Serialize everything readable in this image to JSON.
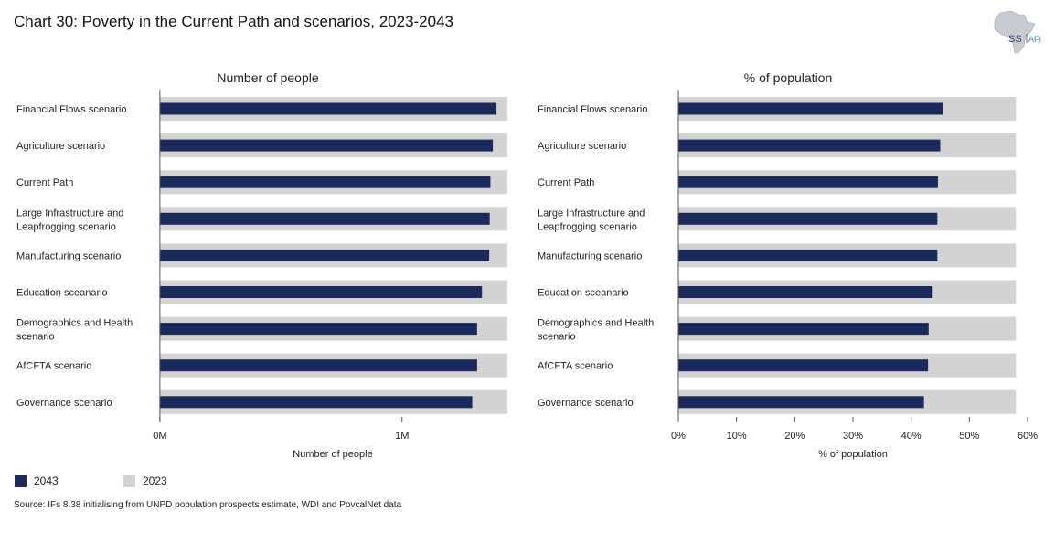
{
  "title": "Chart 30: Poverty in the Current Path and scenarios, 2023-2043",
  "logo": {
    "text_main": "ISS",
    "text_sub": "AFI"
  },
  "colors": {
    "bar_2043": "#1b2a5a",
    "bar_2023": "#d3d3d4",
    "axis": "#555555"
  },
  "legend": [
    {
      "label": "2043",
      "color": "#1b2a5a"
    },
    {
      "label": "2023",
      "color": "#d3d3d4"
    }
  ],
  "source": "Source: IFs 8.38 initialising from UNPD population prospects estimate, WDI and PovcalNet data",
  "chart_data": [
    {
      "type": "bar",
      "orientation": "horizontal",
      "title": "Number of people",
      "xlabel": "Number of people",
      "xlim": [
        -0.007,
        1.435
      ],
      "ticks": [
        {
          "value": 0,
          "label": "0M"
        },
        {
          "value": 1,
          "label": "1M"
        }
      ],
      "categories": [
        [
          "Financial Flows scenario"
        ],
        [
          "Agriculture scenario"
        ],
        [
          "Current Path"
        ],
        [
          "Large Infrastructure and",
          "Leapfrogging scenario"
        ],
        [
          "Manufacturing scenario"
        ],
        [
          "Education sceanario"
        ],
        [
          "Demographics and Health",
          "scenario"
        ],
        [
          "AfCFTA scenario"
        ],
        [
          "Governance scenario"
        ]
      ],
      "series": [
        {
          "name": "2023",
          "values": [
            1.435,
            1.435,
            1.435,
            1.435,
            1.435,
            1.435,
            1.435,
            1.435,
            1.435
          ]
        },
        {
          "name": "2043",
          "values": [
            1.39,
            1.375,
            1.365,
            1.362,
            1.36,
            1.33,
            1.31,
            1.31,
            1.29
          ]
        }
      ]
    },
    {
      "type": "bar",
      "orientation": "horizontal",
      "title": "% of population",
      "xlabel": "% of population",
      "xlim": [
        0,
        60
      ],
      "ticks": [
        {
          "value": 0,
          "label": "0%"
        },
        {
          "value": 10,
          "label": "10%"
        },
        {
          "value": 20,
          "label": "20%"
        },
        {
          "value": 30,
          "label": "30%"
        },
        {
          "value": 40,
          "label": "40%"
        },
        {
          "value": 50,
          "label": "50%"
        },
        {
          "value": 60,
          "label": "60%"
        }
      ],
      "categories": [
        [
          "Financial Flows scenario"
        ],
        [
          "Agriculture scenario"
        ],
        [
          "Current Path"
        ],
        [
          "Large Infrastructure and",
          "Leapfrogging scenario"
        ],
        [
          "Manufacturing scenario"
        ],
        [
          "Education sceanario"
        ],
        [
          "Demographics and Health",
          "scenario"
        ],
        [
          "AfCFTA scenario"
        ],
        [
          "Governance scenario"
        ]
      ],
      "series": [
        {
          "name": "2023",
          "values": [
            58,
            58,
            58,
            58,
            58,
            58,
            58,
            58,
            58
          ]
        },
        {
          "name": "2043",
          "values": [
            45.5,
            45,
            44.6,
            44.5,
            44.5,
            43.7,
            43,
            42.9,
            42.2
          ]
        }
      ]
    }
  ]
}
